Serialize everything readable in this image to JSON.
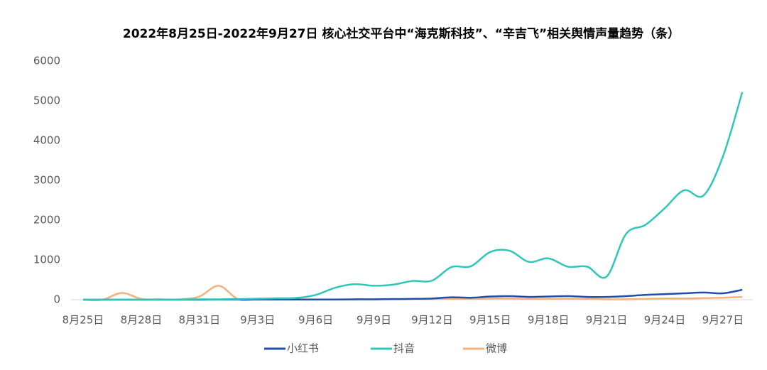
{
  "chart_data": {
    "type": "line",
    "title": "2022年8月25日-2022年9月27日 核心社交平台中“海克斯科技”、“辛吉飞”相关舆情声量趋势（条）",
    "categories": [
      "8月25日",
      null,
      null,
      "8月28日",
      null,
      null,
      "8月31日",
      null,
      null,
      "9月3日",
      null,
      null,
      "9月6日",
      null,
      null,
      "9月9日",
      null,
      null,
      "9月12日",
      null,
      null,
      "9月15日",
      null,
      null,
      "9月18日",
      null,
      null,
      "9月21日",
      null,
      null,
      "9月24日",
      null,
      null,
      "9月27日",
      null
    ],
    "series": [
      {
        "name": "小红书",
        "color": "#1f4fa8",
        "values": [
          0,
          0,
          0,
          0,
          0,
          0,
          0,
          5,
          5,
          5,
          5,
          5,
          5,
          5,
          10,
          10,
          15,
          20,
          30,
          60,
          50,
          80,
          90,
          70,
          80,
          90,
          70,
          70,
          90,
          120,
          140,
          160,
          180,
          160,
          250
        ]
      },
      {
        "name": "抖音",
        "color": "#2ec7b8",
        "values": [
          0,
          0,
          5,
          5,
          5,
          5,
          10,
          10,
          15,
          25,
          35,
          45,
          120,
          300,
          390,
          350,
          380,
          470,
          480,
          820,
          840,
          1200,
          1230,
          950,
          1040,
          830,
          830,
          580,
          1650,
          1880,
          2300,
          2750,
          2620,
          3600,
          5220
        ]
      },
      {
        "name": "微博",
        "color": "#f5b07c",
        "values": [
          0,
          0,
          170,
          20,
          10,
          10,
          80,
          350,
          10,
          10,
          10,
          10,
          5,
          5,
          5,
          10,
          15,
          20,
          20,
          20,
          20,
          30,
          30,
          20,
          20,
          20,
          20,
          10,
          10,
          20,
          30,
          30,
          40,
          50,
          70
        ]
      }
    ],
    "ylim": [
      0,
      6000
    ],
    "yticks": [
      0,
      1000,
      2000,
      3000,
      4000,
      5000,
      6000
    ],
    "legend": "bottom"
  }
}
